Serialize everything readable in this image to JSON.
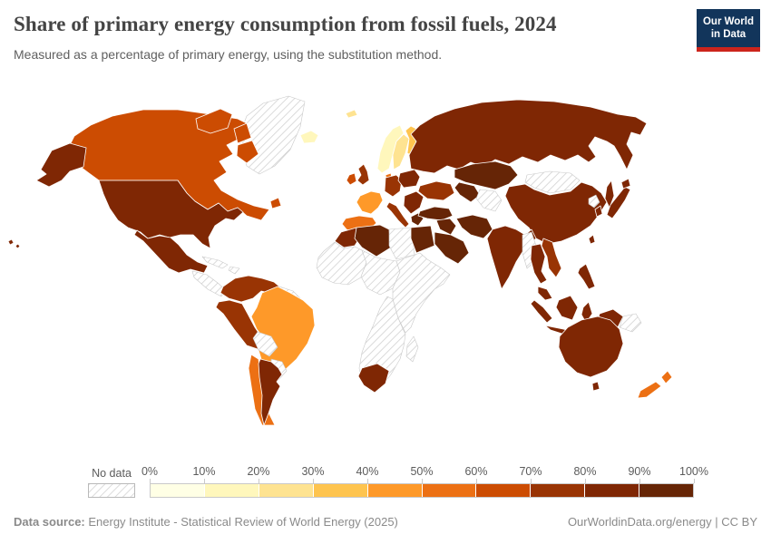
{
  "header": {
    "title": "Share of primary energy consumption from fossil fuels, 2024",
    "subtitle": "Measured as a percentage of primary energy, using the substitution method.",
    "logo": {
      "line1": "Our World",
      "line2": "in Data",
      "bg_color": "#12355B",
      "accent_color": "#CC241C"
    }
  },
  "footer": {
    "source_label": "Data source:",
    "source_text": " Energy Institute - Statistical Review of World Energy (2025)",
    "right_text": "OurWorldinData.org/energy | CC BY"
  },
  "chart_data": {
    "type": "heatmap",
    "subtype": "choropleth-world-map",
    "title": "Share of primary energy consumption from fossil fuels, 2024",
    "subtitle": "Measured as a percentage of primary energy, using the substitution method.",
    "unit": "% of primary energy",
    "year": 2024,
    "legend": {
      "no_data_label": "No data",
      "tick_labels": [
        "0%",
        "10%",
        "20%",
        "30%",
        "40%",
        "50%",
        "60%",
        "70%",
        "80%",
        "90%",
        "100%"
      ],
      "bin_ranges": [
        "0-10%",
        "10-20%",
        "20-30%",
        "30-40%",
        "40-50%",
        "50-60%",
        "60-70%",
        "70-80%",
        "80-90%",
        "90-100%"
      ],
      "bin_colors": [
        "#FFFFE5",
        "#FFF7BC",
        "#FEE391",
        "#FEC44F",
        "#FE9929",
        "#EC7014",
        "#CC4C02",
        "#993404",
        "#7F2704",
        "#662506"
      ],
      "no_data_hatch_line_color": "#d2d2d2",
      "position": "bottom"
    },
    "regions": [
      {
        "name": "Canada",
        "bin": "60-70%"
      },
      {
        "name": "Canada Arctic Islands",
        "bin": "60-70%"
      },
      {
        "name": "Newfoundland",
        "bin": "60-70%"
      },
      {
        "name": "United States",
        "bin": "80-90%"
      },
      {
        "name": "Alaska",
        "bin": "80-90%"
      },
      {
        "name": "Hawaii",
        "bin": "80-90%"
      },
      {
        "name": "Greenland",
        "bin": "No data"
      },
      {
        "name": "Mexico",
        "bin": "80-90%"
      },
      {
        "name": "Central America",
        "bin": "No data"
      },
      {
        "name": "Cuba",
        "bin": "No data"
      },
      {
        "name": "Hispaniola",
        "bin": "No data"
      },
      {
        "name": "Colombia-Venezuela",
        "bin": "70-80%"
      },
      {
        "name": "Guyanas",
        "bin": "No data"
      },
      {
        "name": "Peru-Ecuador",
        "bin": "70-80%"
      },
      {
        "name": "Brazil",
        "bin": "40-50%"
      },
      {
        "name": "Bolivia",
        "bin": "No data"
      },
      {
        "name": "Paraguay-Uruguay",
        "bin": "No data"
      },
      {
        "name": "Chile",
        "bin": "50-60%"
      },
      {
        "name": "Argentina",
        "bin": "80-90%"
      },
      {
        "name": "Iceland",
        "bin": "10-20%"
      },
      {
        "name": "Svalbard",
        "bin": "20-30%"
      },
      {
        "name": "Norway",
        "bin": "10-20%"
      },
      {
        "name": "Sweden",
        "bin": "20-30%"
      },
      {
        "name": "Finland",
        "bin": "30-40%"
      },
      {
        "name": "Denmark",
        "bin": "50-60%"
      },
      {
        "name": "United Kingdom",
        "bin": "70-80%"
      },
      {
        "name": "Ireland",
        "bin": "60-70%"
      },
      {
        "name": "France",
        "bin": "40-50%"
      },
      {
        "name": "Iberia",
        "bin": "50-60%"
      },
      {
        "name": "Germany-Central Europe",
        "bin": "70-80%"
      },
      {
        "name": "Italy",
        "bin": "70-80%"
      },
      {
        "name": "Poland-Baltics",
        "bin": "80-90%"
      },
      {
        "name": "Balkans",
        "bin": "80-90%"
      },
      {
        "name": "Greece",
        "bin": "90-100%"
      },
      {
        "name": "Ukraine",
        "bin": "70-80%"
      },
      {
        "name": "Russia",
        "bin": "80-90%"
      },
      {
        "name": "Sakhalin",
        "bin": "80-90%"
      },
      {
        "name": "Kazakhstan",
        "bin": "90-100%"
      },
      {
        "name": "Uzbekistan-Turkmenistan",
        "bin": "90-100%"
      },
      {
        "name": "Central Asia",
        "bin": "No data"
      },
      {
        "name": "Mongolia",
        "bin": "No data"
      },
      {
        "name": "China",
        "bin": "80-90%"
      },
      {
        "name": "India",
        "bin": "80-90%"
      },
      {
        "name": "Turkey",
        "bin": "90-100%"
      },
      {
        "name": "Iraq-Syria",
        "bin": "90-100%"
      },
      {
        "name": "Iran",
        "bin": "90-100%"
      },
      {
        "name": "Saudi Arabia",
        "bin": "90-100%"
      },
      {
        "name": "Morocco",
        "bin": "80-90%"
      },
      {
        "name": "Algeria",
        "bin": "90-100%"
      },
      {
        "name": "Libya",
        "bin": "No data"
      },
      {
        "name": "Egypt",
        "bin": "90-100%"
      },
      {
        "name": "West Africa",
        "bin": "No data"
      },
      {
        "name": "Central Africa",
        "bin": "No data"
      },
      {
        "name": "East Africa",
        "bin": "No data"
      },
      {
        "name": "Southern Africa",
        "bin": "No data"
      },
      {
        "name": "South Africa",
        "bin": "80-90%"
      },
      {
        "name": "Madagascar",
        "bin": "No data"
      },
      {
        "name": "Myanmar",
        "bin": "No data"
      },
      {
        "name": "Thailand",
        "bin": "80-90%"
      },
      {
        "name": "Vietnam-Laos",
        "bin": "70-80%"
      },
      {
        "name": "Malaysia",
        "bin": "80-90%"
      },
      {
        "name": "Sumatra",
        "bin": "80-90%"
      },
      {
        "name": "Java",
        "bin": "80-90%"
      },
      {
        "name": "Borneo",
        "bin": "80-90%"
      },
      {
        "name": "Sulawesi",
        "bin": "80-90%"
      },
      {
        "name": "New Guinea Indonesia",
        "bin": "80-90%"
      },
      {
        "name": "Papua New Guinea",
        "bin": "No data"
      },
      {
        "name": "Philippines",
        "bin": "80-90%"
      },
      {
        "name": "Taiwan",
        "bin": "80-90%"
      },
      {
        "name": "Japan",
        "bin": "80-90%"
      },
      {
        "name": "Hokkaido",
        "bin": "80-90%"
      },
      {
        "name": "South Korea",
        "bin": "80-90%"
      },
      {
        "name": "North Korea",
        "bin": "No data"
      },
      {
        "name": "Australia",
        "bin": "80-90%"
      },
      {
        "name": "Tasmania",
        "bin": "80-90%"
      },
      {
        "name": "New Zealand North",
        "bin": "50-60%"
      },
      {
        "name": "New Zealand South",
        "bin": "50-60%"
      }
    ]
  }
}
